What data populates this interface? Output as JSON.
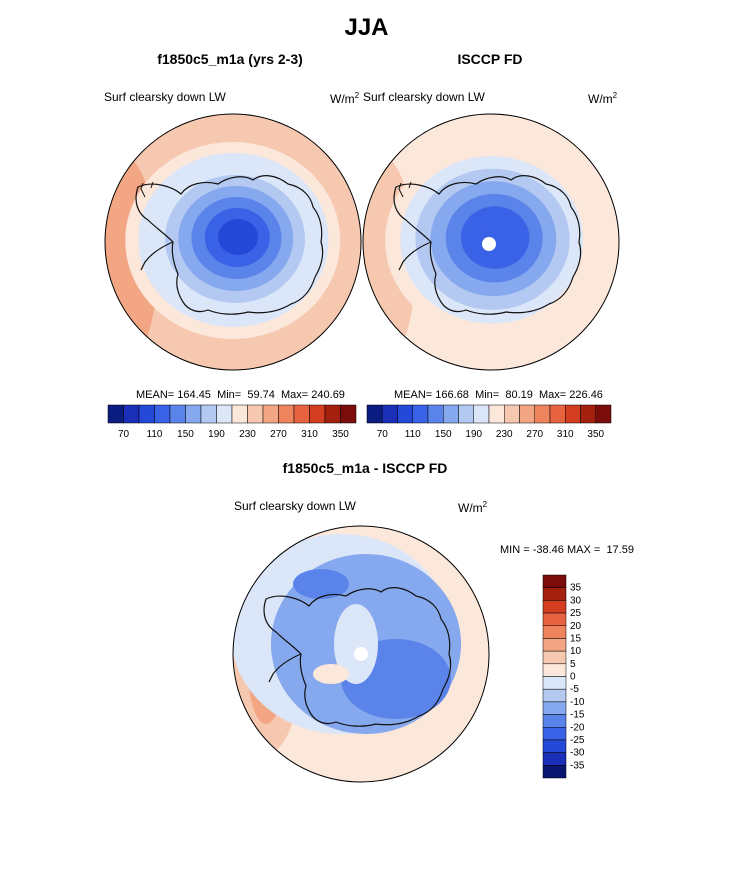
{
  "figure": {
    "title": "JJA"
  },
  "colors": {
    "abs_palette": [
      "#0a1c80",
      "#1a2fb8",
      "#2448d8",
      "#3a62e6",
      "#5a84ea",
      "#86a8ee",
      "#b3c9f2",
      "#dbe6f8",
      "#fce7db",
      "#f6c8b0",
      "#f2a684",
      "#ee845d",
      "#e7623e",
      "#d33d20",
      "#a3200e",
      "#7a0d0a"
    ],
    "diff_palette": [
      "#0a1570",
      "#1a2fb8",
      "#2448d8",
      "#3a62e6",
      "#5a84ea",
      "#86a8ee",
      "#b3c9f2",
      "#dbe6f8",
      "#fce7db",
      "#f6c8b0",
      "#f2a684",
      "#ee845d",
      "#e7623e",
      "#d33d20",
      "#a3200e",
      "#7a0d0a"
    ],
    "coast": "#111111"
  },
  "panels": {
    "model": {
      "title": "f1850c5_m1a (yrs 2-3)",
      "field_label": "Surf clearsky down LW",
      "unit_base": "W/m",
      "unit_exp": "2",
      "mean_label": "MEAN=",
      "mean": "164.45",
      "min_label": "Min=",
      "min": "59.74",
      "max_label": "Max=",
      "max": "240.69"
    },
    "obs": {
      "title": "ISCCP FD",
      "field_label": "Surf clearsky down LW",
      "unit_base": "W/m",
      "unit_exp": "2",
      "mean_label": "MEAN=",
      "mean": "166.68",
      "min_label": "Min=",
      "min": "80.19",
      "max_label": "Max=",
      "max": "226.46"
    },
    "diff": {
      "title": "f1850c5_m1a - ISCCP FD",
      "field_label": "Surf clearsky down LW",
      "unit_base": "W/m",
      "unit_exp": "2",
      "min_label": "MIN =",
      "min": "-38.46",
      "max_label": "MAX =",
      "max": "17.59"
    }
  },
  "chart_data": [
    {
      "type": "heatmap",
      "projection": "south-polar-stereographic",
      "title": "f1850c5_m1a (yrs 2-3)",
      "variable": "Surf clearsky down LW",
      "units": "W/m2",
      "mean": 164.45,
      "min": 59.74,
      "max": 240.69,
      "contour_levels": [
        70,
        80,
        90,
        100,
        110,
        120,
        130,
        140,
        150,
        160,
        170,
        180,
        190,
        200,
        210,
        220,
        230,
        240,
        250,
        260,
        270,
        280,
        290,
        300,
        310,
        320,
        330,
        340,
        350
      ],
      "colorbar_ticks": [
        70,
        110,
        150,
        190,
        230,
        270,
        310,
        350
      ],
      "colorbar_orientation": "horizontal",
      "field_rings": [
        95,
        110,
        130,
        150,
        170,
        190,
        205,
        225,
        238
      ]
    },
    {
      "type": "heatmap",
      "projection": "south-polar-stereographic",
      "title": "ISCCP FD",
      "variable": "Surf clearsky down LW",
      "units": "W/m2",
      "mean": 166.68,
      "min": 80.19,
      "max": 226.46,
      "colorbar_ticks": [
        70,
        110,
        150,
        190,
        230,
        270,
        310,
        350
      ],
      "colorbar_orientation": "horizontal",
      "field_rings": [
        110,
        125,
        140,
        155,
        175,
        195,
        212,
        225
      ]
    },
    {
      "type": "heatmap",
      "projection": "south-polar-stereographic",
      "title": "f1850c5_m1a - ISCCP FD",
      "variable": "Surf clearsky down LW",
      "units": "W/m2",
      "min": -38.46,
      "max": 17.59,
      "colorbar_ticks": [
        35,
        30,
        25,
        20,
        15,
        10,
        5,
        0,
        -5,
        -10,
        -15,
        -20,
        -25,
        -30,
        -35
      ],
      "colorbar_orientation": "vertical"
    }
  ]
}
